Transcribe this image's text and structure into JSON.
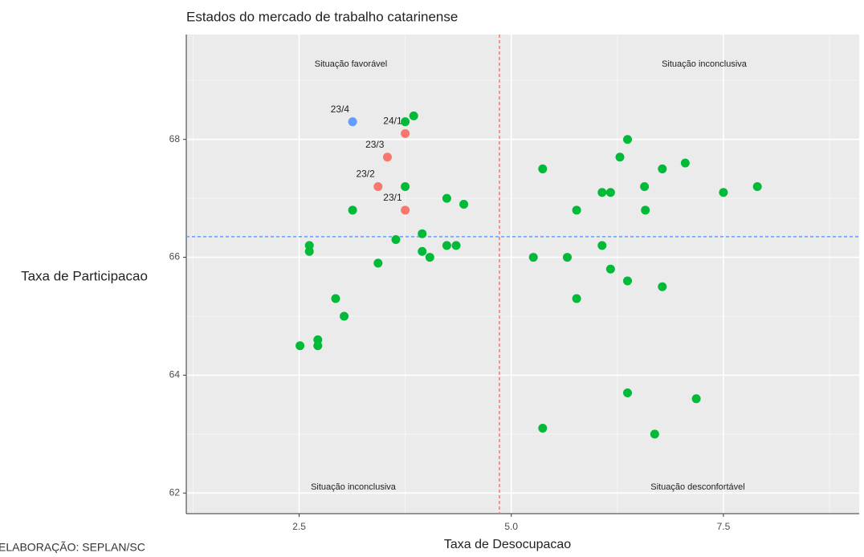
{
  "chart_data": {
    "type": "scatter",
    "title": "Estados do mercado de trabalho catarinense",
    "xlabel": "Taxa de Desocupacao",
    "ylabel": "Taxa de Participacao",
    "source": "ELABORAÇÃO: SEPLAN/SC",
    "xlim": [
      1.17,
      9.1
    ],
    "ylim": [
      61.65,
      69.78
    ],
    "xticks": [
      2.5,
      {
        "value": 5,
        "label": "5.0"
      },
      7.5
    ],
    "yticks": [
      62,
      64,
      66,
      68
    ],
    "grid": true,
    "vline": 4.86,
    "vline_color": "#f8766d",
    "hline": 66.35,
    "hline_color": "#619cff",
    "annotations": [
      "Situação favorável",
      "Situação inconclusiva",
      "Situação inconclusiva",
      "Situação desconfortável"
    ],
    "series": [
      {
        "color": "#00ba38",
        "x": [
          3.85,
          3.75,
          6.37,
          6.28,
          7.05,
          5.37,
          6.78,
          7.9,
          7.5,
          6.57,
          6.07,
          6.17,
          3.75,
          4.24,
          5.77,
          6.58,
          4.44,
          3.13,
          3.95,
          3.64,
          2.62,
          2.62,
          4.24,
          4.35,
          3.95,
          4.04,
          3.43,
          5.26,
          5.66,
          6.07,
          6.17,
          6.37,
          6.78,
          5.77,
          2.93,
          3.03,
          2.72,
          2.72,
          2.51,
          6.37,
          7.18,
          5.37,
          6.69
        ],
        "values": [
          68.4,
          68.3,
          68.0,
          67.7,
          67.6,
          67.5,
          67.5,
          67.2,
          67.1,
          67.2,
          67.1,
          67.1,
          67.2,
          67.0,
          66.8,
          66.8,
          66.9,
          66.8,
          66.4,
          66.3,
          66.2,
          66.1,
          66.2,
          66.2,
          66.1,
          66.0,
          65.9,
          66.0,
          66.0,
          66.2,
          65.8,
          65.6,
          65.5,
          65.3,
          65.3,
          65.0,
          64.6,
          64.5,
          64.5,
          63.7,
          63.6,
          63.1,
          63.0
        ]
      },
      {
        "color": "#f8766d",
        "x": [
          3.75,
          3.54,
          3.43,
          3.75
        ],
        "values": [
          68.1,
          67.7,
          67.2,
          66.8
        ],
        "labels": [
          "24/1",
          "23/3",
          "23/2",
          "23/1"
        ]
      },
      {
        "color": "#619cff",
        "x": [
          3.13
        ],
        "values": [
          68.3
        ],
        "labels": [
          "23/4"
        ]
      }
    ]
  }
}
